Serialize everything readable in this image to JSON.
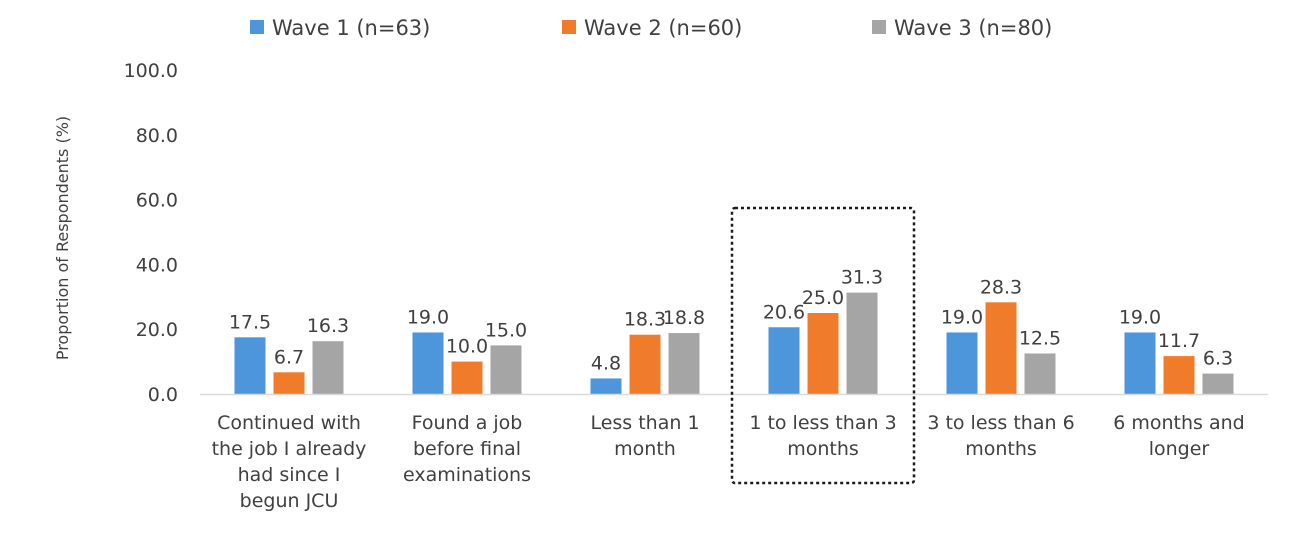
{
  "chart_data": {
    "type": "bar",
    "title": "",
    "xlabel": "",
    "ylabel": "Proportion of Respondents (%)",
    "ylim": [
      0,
      100
    ],
    "yticks": [
      "0.0",
      "20.0",
      "40.0",
      "60.0",
      "80.0",
      "100.0"
    ],
    "grid": false,
    "legend_position": "top",
    "categories": [
      "Continued with the job I already had since I begun JCU",
      "Found a job before final examinations",
      "Less than 1 month",
      "1 to less than 3 months",
      "3 to less than 6 months",
      "6 months and longer"
    ],
    "category_lines": [
      [
        "Continued with",
        "the job I already",
        "had since I",
        "begun JCU"
      ],
      [
        "Found a job",
        "before final",
        "examinations"
      ],
      [
        "Less than 1",
        "month"
      ],
      [
        "1 to less than 3",
        "months"
      ],
      [
        "3 to less than 6",
        "months"
      ],
      [
        "6 months and",
        "longer"
      ]
    ],
    "series": [
      {
        "name": "Wave 1 (n=63)",
        "color": "#4e96dc",
        "values": [
          17.5,
          19.0,
          4.8,
          20.6,
          19.0,
          19.0
        ],
        "labels": [
          "17.5",
          "19.0",
          "4.8",
          "20.6",
          "19.0",
          "19.0"
        ]
      },
      {
        "name": "Wave 2 (n=60)",
        "color": "#f07b2a",
        "values": [
          6.7,
          10.0,
          18.3,
          25.0,
          28.3,
          11.7
        ],
        "labels": [
          "6.7",
          "10.0",
          "18.3",
          "25.0",
          "28.3",
          "11.7"
        ]
      },
      {
        "name": "Wave 3 (n=80)",
        "color": "#a5a5a5",
        "values": [
          16.3,
          15.0,
          18.8,
          31.3,
          12.5,
          6.3
        ],
        "labels": [
          "16.3",
          "15.0",
          "18.8",
          "31.3",
          "12.5",
          "6.3"
        ]
      }
    ],
    "highlighted_category": 3,
    "colors": {
      "axis": "#d9d9d9",
      "text": "#404040",
      "highlight_border": "#1a1a1a"
    }
  }
}
